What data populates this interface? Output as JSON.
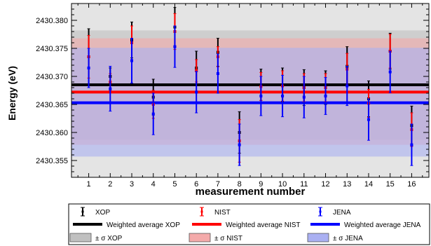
{
  "chart_data": {
    "type": "scatter",
    "xlabel": "measurement number",
    "ylabel": "Energy (eV)",
    "xlim": [
      0.2,
      16.8
    ],
    "ylim": [
      2430.352,
      2430.383
    ],
    "x_ticks": [
      "1",
      "2",
      "3",
      "4",
      "5",
      "6",
      "7",
      "8",
      "9",
      "10",
      "11",
      "12",
      "13",
      "14",
      "15",
      "16"
    ],
    "y_ticks": [
      "2430.355",
      "2430.360",
      "2430.365",
      "2430.370",
      "2430.375",
      "2430.380"
    ],
    "y_tick_values": [
      2430.355,
      2430.36,
      2430.365,
      2430.37,
      2430.375,
      2430.38
    ],
    "series": [
      {
        "name": "XOP",
        "color": "#000000",
        "x": [
          1,
          2,
          3,
          4,
          5,
          6,
          7,
          8,
          9,
          10,
          11,
          12,
          13,
          14,
          15,
          16
        ],
        "y": [
          2430.3735,
          2430.37,
          2430.3765,
          2430.3663,
          2430.3788,
          2430.3715,
          2430.3743,
          2430.36,
          2430.3685,
          2430.3685,
          2430.368,
          2430.368,
          2430.3718,
          2430.366,
          2430.3745,
          2430.3612
        ],
        "err": [
          0.005,
          0.0015,
          0.0032,
          0.0032,
          0.0035,
          0.003,
          0.0025,
          0.0037,
          0.0028,
          0.003,
          0.0032,
          0.003,
          0.0035,
          0.0032,
          0.0032,
          0.0035
        ]
      },
      {
        "name": "NIST",
        "color": "#ff0000",
        "x": [
          1,
          2,
          3,
          4,
          5,
          6,
          7,
          8,
          9,
          10,
          11,
          12,
          13,
          14,
          15,
          16
        ],
        "y": [
          2430.3735,
          2430.369,
          2430.376,
          2430.365,
          2430.378,
          2430.371,
          2430.3735,
          2430.3585,
          2430.3682,
          2430.3683,
          2430.368,
          2430.368,
          2430.3713,
          2430.3652,
          2430.3745,
          2430.3605
        ],
        "err": [
          0.0038,
          0.0015,
          0.003,
          0.0025,
          0.0032,
          0.002,
          0.0018,
          0.0038,
          0.0025,
          0.0027,
          0.0025,
          0.0025,
          0.0028,
          0.0025,
          0.003,
          0.003
        ]
      },
      {
        "name": "JENA",
        "color": "#0000ff",
        "x": [
          1,
          2,
          3,
          4,
          5,
          6,
          7,
          8,
          9,
          10,
          11,
          12,
          13,
          14,
          15,
          16
        ],
        "y": [
          2430.3715,
          2430.3678,
          2430.3728,
          2430.3633,
          2430.3753,
          2430.3672,
          2430.3705,
          2430.3578,
          2430.3665,
          2430.3665,
          2430.3663,
          2430.3665,
          2430.3683,
          2430.3623,
          2430.3708,
          2430.3578
        ],
        "err": [
          0.0035,
          0.004,
          0.004,
          0.0037,
          0.0037,
          0.0037,
          0.0035,
          0.0037,
          0.0035,
          0.0037,
          0.0037,
          0.0033,
          0.0035,
          0.0037,
          0.0037,
          0.0037
        ]
      }
    ],
    "averages": [
      {
        "name": "Weighted average XOP",
        "value": 2430.3685,
        "sigma_lo": 2430.3587,
        "sigma_hi": 2430.3782,
        "color": "#000000",
        "band_color": "#c0c0c0"
      },
      {
        "name": "Weighted average NIST",
        "value": 2430.3672,
        "sigma_lo": 2430.3578,
        "sigma_hi": 2430.3768,
        "color": "#ff0000",
        "band_color": "#f4aaaa"
      },
      {
        "name": "Weighted average JENA",
        "value": 2430.3653,
        "sigma_lo": 2430.3557,
        "sigma_hi": 2430.3751,
        "color": "#0000ff",
        "band_color": "#aab0f2"
      }
    ],
    "legend": {
      "position": "bottom",
      "rows": [
        [
          "XOP",
          "NIST",
          "JENA"
        ],
        [
          "Weighted average XOP",
          "Weighted average NIST",
          "Weighted average JENA"
        ],
        [
          "± σ XOP",
          "± σ NIST",
          "± σ JENA"
        ]
      ]
    },
    "grid": false,
    "plot_background": "#e4e4e4"
  }
}
